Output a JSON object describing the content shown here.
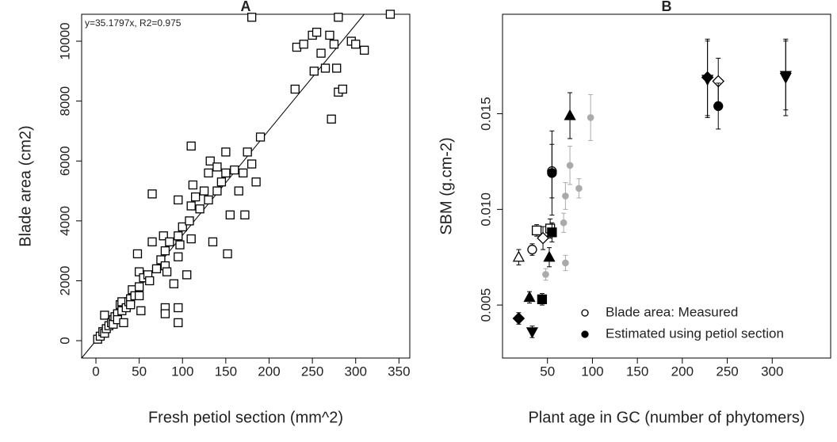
{
  "chart_data": [
    {
      "type": "scatter",
      "title": "A",
      "xlabel": "Fresh petiol section (mm^2)",
      "ylabel": "Blade area (cm2)",
      "fit": {
        "label": "y=35.1797x, R2=0.975",
        "slope": 35.1797
      },
      "xlim": [
        -16.5,
        362.5
      ],
      "ylim": [
        -580,
        10900
      ],
      "xticks": [
        0,
        50,
        100,
        150,
        200,
        250,
        300,
        350
      ],
      "yticks": [
        0,
        2000,
        4000,
        6000,
        8000,
        10000
      ],
      "series": [
        {
          "marker": "square",
          "color": "#000000",
          "x": [
            2,
            5,
            8,
            10,
            10,
            12,
            15,
            18,
            20,
            20,
            22,
            25,
            25,
            28,
            30,
            30,
            32,
            35,
            38,
            40,
            40,
            42,
            45,
            48,
            50,
            50,
            50,
            52,
            55,
            60,
            62,
            65,
            65,
            70,
            75,
            78,
            80,
            80,
            80,
            80,
            82,
            85,
            90,
            95,
            95,
            95,
            95,
            95,
            97,
            100,
            105,
            108,
            110,
            110,
            110,
            112,
            115,
            120,
            125,
            130,
            130,
            132,
            135,
            140,
            140,
            145,
            150,
            150,
            152,
            155,
            160,
            165,
            170,
            172,
            175,
            180,
            180,
            185,
            190,
            230,
            232,
            240,
            250,
            252,
            255,
            260,
            265,
            270,
            272,
            275,
            278,
            280,
            280,
            285,
            295,
            300,
            310,
            340
          ],
          "values": [
            50,
            150,
            300,
            850,
            250,
            400,
            500,
            600,
            700,
            550,
            800,
            900,
            700,
            1200,
            1000,
            1300,
            600,
            1100,
            1300,
            1400,
            1200,
            1700,
            1500,
            2900,
            1800,
            1500,
            2300,
            1000,
            2100,
            2200,
            2000,
            4900,
            3300,
            2400,
            2700,
            3500,
            3000,
            2500,
            1100,
            900,
            2300,
            3300,
            1900,
            3500,
            4700,
            2800,
            1100,
            600,
            3200,
            3800,
            2200,
            4000,
            6500,
            4500,
            3400,
            5200,
            4800,
            4400,
            5000,
            5600,
            4700,
            6000,
            3300,
            5000,
            5800,
            5300,
            6300,
            5600,
            2900,
            4200,
            5700,
            5000,
            5600,
            4200,
            6300,
            5900,
            10800,
            5300,
            6800,
            8400,
            9800,
            9900,
            10200,
            9000,
            10300,
            9600,
            9100,
            10200,
            7400,
            9900,
            9100,
            10800,
            8300,
            8400,
            10000,
            9900,
            9700,
            10900
          ]
        }
      ]
    },
    {
      "type": "scatter",
      "title": "B",
      "xlabel": "Plant age in GC (number of phytomers)",
      "ylabel": "SBM (g.cm-2)",
      "xlim": [
        0,
        365
      ],
      "ylim": [
        0.00223,
        0.0202
      ],
      "xticks": [
        50,
        100,
        150,
        200,
        250,
        300
      ],
      "yticks": [
        0.005,
        {
          "value": 0.01,
          "label": "0.010"
        },
        0.015
      ],
      "legend": "bottom-right",
      "series": [
        {
          "name": "Blade area: Measured",
          "fill": "open",
          "color": "#000000",
          "x": [
            18,
            33,
            38,
            45,
            53,
            55,
            228,
            240,
            315
          ],
          "values": [
            0.0075,
            0.0079,
            0.0089,
            0.0085,
            0.009,
            0.012,
            0.0168,
            0.0167,
            0.0169
          ],
          "errors": [
            0.0004,
            0.0003,
            0.0003,
            0.0006,
            0.0005,
            0.0014,
            0.002,
            0.0012,
            0.002
          ],
          "markers": [
            "triangle-up",
            "circle",
            "square",
            "diamond",
            "square",
            "circle",
            "triangle-down",
            "diamond",
            "triangle-down"
          ]
        },
        {
          "name": "Estimated using petiol section",
          "fill": "filled",
          "color": "#000000",
          "x": [
            18,
            30,
            33,
            44,
            52,
            55,
            55,
            75,
            228,
            240,
            315
          ],
          "values": [
            0.0043,
            0.0054,
            0.0036,
            0.0053,
            0.0075,
            0.0088,
            0.0119,
            0.0149,
            0.0169,
            0.0154,
            0.017
          ],
          "errors": [
            0.0003,
            0.0003,
            0.0003,
            0.0003,
            0.0005,
            0.0005,
            0.0022,
            0.0012,
            0.002,
            0.0012,
            0.0018
          ],
          "markers": [
            "diamond",
            "triangle-up",
            "triangle-down",
            "square",
            "triangle-up",
            "square",
            "circle",
            "triangle-up",
            "diamond",
            "circle",
            "triangle-down"
          ]
        },
        {
          "fill": "filled",
          "color": "#aaaaaa",
          "x": [
            48,
            70,
            68,
            70,
            75,
            85,
            98
          ],
          "values": [
            0.0066,
            0.0072,
            0.0093,
            0.0107,
            0.0123,
            0.0111,
            0.0148
          ],
          "errors": [
            0.0003,
            0.0004,
            0.0005,
            0.0007,
            0.001,
            0.0005,
            0.0012
          ],
          "markers": [
            "dot",
            "dot",
            "dot",
            "dot",
            "dot",
            "dot",
            "dot"
          ]
        }
      ]
    }
  ]
}
